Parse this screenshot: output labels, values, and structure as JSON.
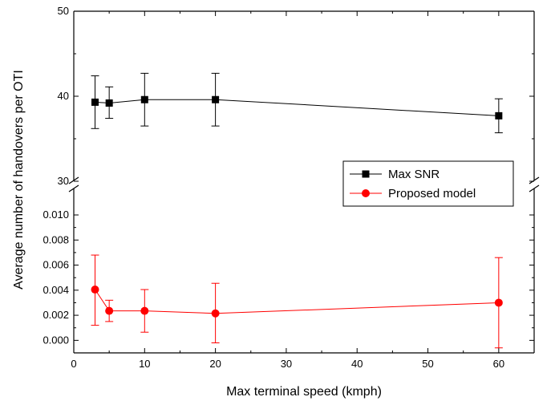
{
  "chart_data": {
    "type": "scatter",
    "title": "",
    "xlabel": "Max terminal speed (kmph)",
    "ylabel": "Average number of handovers per OTI",
    "xlim": [
      0,
      65
    ],
    "x_ticks": [
      0,
      10,
      20,
      30,
      40,
      50,
      60
    ],
    "x_tick_labels": [
      "0",
      "10",
      "20",
      "30",
      "40",
      "50",
      "60"
    ],
    "broken_y_axis": true,
    "upper_panel": {
      "ylim": [
        30,
        50
      ],
      "y_ticks": [
        30,
        40,
        50
      ],
      "y_tick_labels": [
        "30",
        "40",
        "50"
      ]
    },
    "lower_panel": {
      "ylim": [
        -0.001,
        0.0116
      ],
      "y_ticks": [
        0.0,
        0.002,
        0.004,
        0.006,
        0.008,
        0.01
      ],
      "y_tick_labels": [
        "0.000",
        "0.002",
        "0.004",
        "0.006",
        "0.008",
        "0.010"
      ]
    },
    "legend_position": "right",
    "grid": false,
    "series": [
      {
        "name": "Max SNR",
        "panel": "upper",
        "color": "#000000",
        "marker": "square",
        "x": [
          3,
          5,
          10,
          20,
          60
        ],
        "y": [
          39.3,
          39.2,
          39.6,
          39.6,
          37.7
        ],
        "err_low": [
          36.2,
          37.4,
          36.5,
          36.5,
          35.7
        ],
        "err_high": [
          42.4,
          41.1,
          42.7,
          42.7,
          39.7
        ]
      },
      {
        "name": "Proposed model",
        "panel": "lower",
        "color": "#ff0000",
        "marker": "circle",
        "x": [
          3,
          5,
          10,
          20,
          60
        ],
        "y": [
          0.00405,
          0.00235,
          0.00235,
          0.00215,
          0.003
        ],
        "err_low": [
          0.0012,
          0.0015,
          0.00065,
          -0.0002,
          -0.0006
        ],
        "err_high": [
          0.0068,
          0.0032,
          0.00405,
          0.00455,
          0.0066
        ]
      }
    ]
  }
}
